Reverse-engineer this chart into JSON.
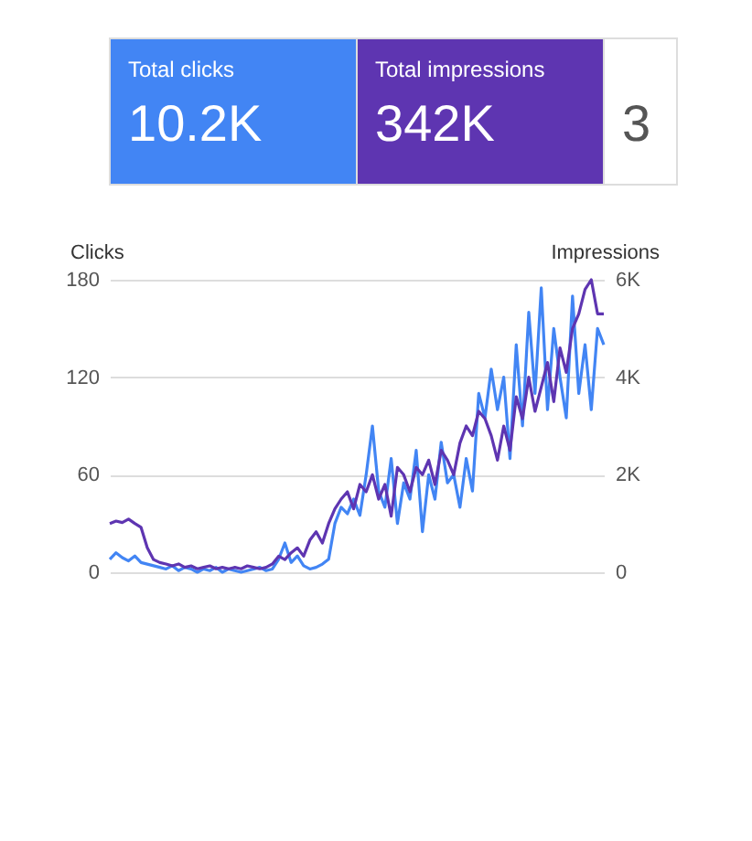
{
  "chart_data": {
    "type": "line",
    "annotations": [
      "Total clicks",
      "10.2K",
      "Total impressions",
      "342K",
      "3"
    ],
    "ylabel": "Clicks",
    "y2label": "Impressions",
    "categories": [
      null,
      null,
      null,
      null,
      null,
      null,
      null,
      null,
      null,
      null,
      null,
      null,
      null,
      null,
      null,
      null,
      null,
      null,
      null,
      null,
      null,
      null,
      null,
      null,
      null,
      null,
      null,
      null,
      null,
      null,
      null,
      null,
      null,
      null,
      null,
      null,
      null,
      null,
      null,
      null,
      null,
      null,
      null,
      null,
      null,
      null,
      null,
      null,
      null,
      null,
      null,
      null,
      null,
      null,
      null,
      null,
      null,
      null,
      null,
      null,
      null,
      null,
      null,
      null,
      null,
      null,
      null,
      null,
      null,
      null,
      null,
      null,
      null,
      null,
      null,
      null,
      null,
      null,
      null,
      null
    ],
    "series": [
      {
        "color": "#4285f4",
        "values": [
          8,
          12,
          9,
          7,
          10,
          6,
          5,
          4,
          3,
          2,
          4,
          1,
          3,
          2,
          0,
          2,
          1,
          3,
          0,
          2,
          1,
          0,
          1,
          2,
          3,
          1,
          2,
          8,
          18,
          6,
          10,
          4,
          2,
          3,
          5,
          8,
          30,
          40,
          36,
          45,
          35,
          60,
          90,
          50,
          40,
          70,
          30,
          55,
          45,
          75,
          25,
          60,
          45,
          80,
          55,
          60,
          40,
          70,
          50,
          110,
          95,
          125,
          100,
          120,
          70,
          140,
          90,
          160,
          110,
          175,
          100,
          150,
          120,
          95,
          170,
          110,
          140,
          100,
          150,
          140
        ]
      },
      {
        "color": "#5e35b1",
        "axis": "y2",
        "values": [
          1000,
          1050,
          1020,
          1090,
          1000,
          920,
          500,
          260,
          200,
          170,
          130,
          170,
          100,
          130,
          70,
          100,
          130,
          70,
          100,
          70,
          100,
          70,
          130,
          100,
          70,
          100,
          170,
          330,
          260,
          400,
          500,
          330,
          660,
          830,
          600,
          1000,
          1300,
          1500,
          1650,
          1300,
          1800,
          1650,
          2000,
          1500,
          1800,
          1150,
          2150,
          2000,
          1650,
          2150,
          2000,
          2300,
          1800,
          2500,
          2300,
          2000,
          2650,
          3000,
          2800,
          3300,
          3150,
          2800,
          2300,
          3000,
          2500,
          3600,
          3150,
          4000,
          3300,
          3800,
          4300,
          3500,
          4600,
          4100,
          5000,
          5300,
          5800,
          6000,
          5300,
          5300
        ]
      }
    ],
    "ylim": [
      0,
      180
    ],
    "yticks": [
      0,
      60,
      120,
      180
    ],
    "y2lim": [
      0,
      6000
    ],
    "y2ticks": [
      0,
      {
        "value": 2000,
        "label": "2K"
      },
      {
        "value": 4000,
        "label": "4K"
      },
      {
        "value": 6000,
        "label": "6K"
      }
    ],
    "grid": "y",
    "line_style": "solid",
    "marker": "none"
  }
}
